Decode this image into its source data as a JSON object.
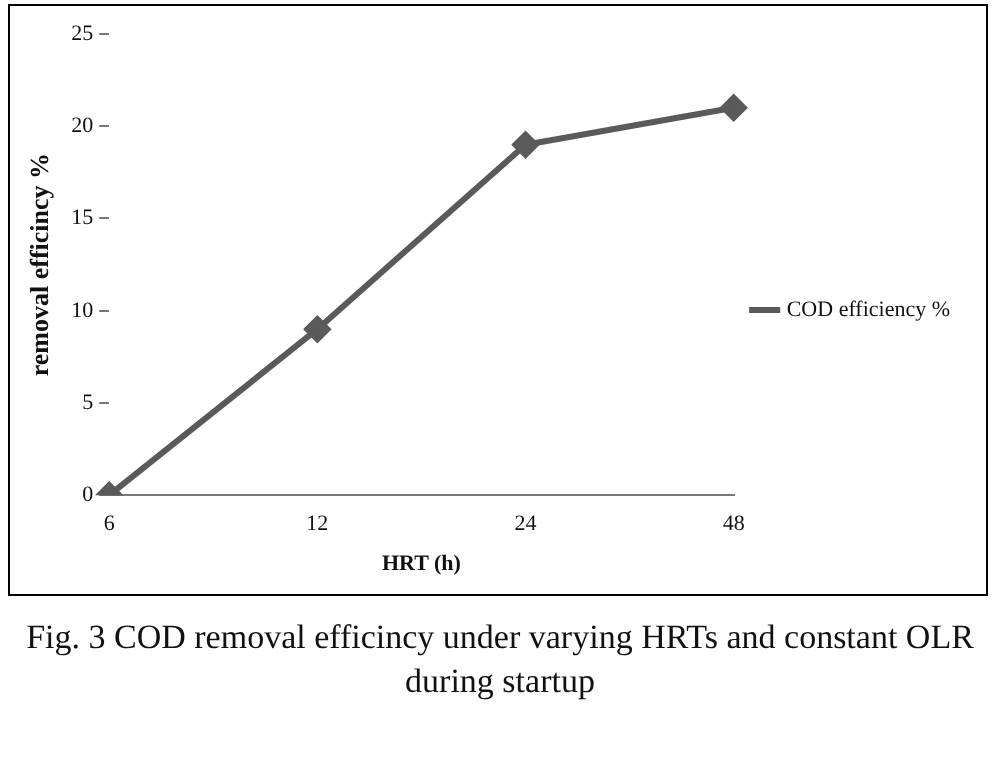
{
  "chart_data": {
    "type": "line",
    "xlabel": "HRT (h)",
    "ylabel": "removal efficincy %",
    "categories": [
      "6",
      "12",
      "24",
      "48"
    ],
    "series": [
      {
        "name": "COD efficiency %",
        "color": "#5a5a5a",
        "values": [
          0,
          9,
          19,
          21
        ]
      }
    ],
    "ylim": [
      0,
      25
    ],
    "yticks": [
      0,
      5,
      10,
      15,
      20,
      25
    ],
    "grid": false,
    "legend": "right",
    "marker": "diamond",
    "line_style": "solid",
    "annotations": [
      "Fig. 3 COD removal efficincy under varying HRTs and constant OLR during startup"
    ]
  }
}
